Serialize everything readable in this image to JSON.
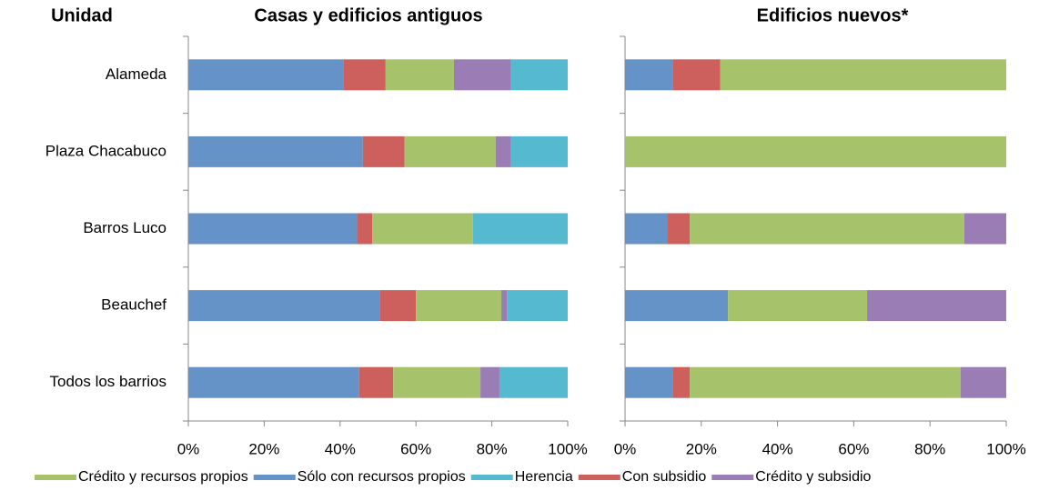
{
  "chart_data": [
    {
      "type": "bar",
      "orientation": "horizontal",
      "stacked": true,
      "y_axis_label": "Unidad",
      "title": "Casas y edificios antiguos",
      "categories": [
        "Alameda",
        "Plaza Chacabuco",
        "Barros Luco",
        "Beauchef",
        "Todos los barrios"
      ],
      "series": [
        {
          "name": "Sólo con recursos propios",
          "color": "#6593c8",
          "values": [
            41,
            46,
            44.5,
            50.5,
            45
          ]
        },
        {
          "name": "Con subsidio",
          "color": "#cd5f5c",
          "values": [
            11,
            11,
            4,
            9.5,
            9
          ]
        },
        {
          "name": "Crédito y recursos propios",
          "color": "#a6c26b",
          "values": [
            18,
            24,
            26.5,
            22.5,
            23
          ]
        },
        {
          "name": "Crédito y subsidio",
          "color": "#9a7db4",
          "values": [
            15,
            4,
            0,
            1.5,
            5
          ]
        },
        {
          "name": "Herencia",
          "color": "#55b9cf",
          "values": [
            15,
            15,
            25,
            16,
            18
          ]
        }
      ],
      "legend_order": [
        2,
        0,
        4,
        1,
        3
      ],
      "xlim": [
        0,
        100
      ],
      "xticks": [
        {
          "value": 0,
          "label": "0%"
        },
        {
          "value": 20,
          "label": "20%"
        },
        {
          "value": 40,
          "label": "40%"
        },
        {
          "value": 60,
          "label": "60%"
        },
        {
          "value": 80,
          "label": "80%"
        },
        {
          "value": 100,
          "label": "100%"
        }
      ]
    },
    {
      "type": "bar",
      "orientation": "horizontal",
      "stacked": true,
      "title": "Edificios nuevos*",
      "series": [
        {
          "values": [
            12.5,
            0,
            11,
            27,
            12.5
          ]
        },
        {
          "values": [
            12.5,
            0,
            6,
            0,
            4.5
          ]
        },
        {
          "values": [
            75,
            100,
            72,
            36.5,
            71
          ]
        },
        {
          "values": [
            0,
            0,
            11,
            36.5,
            12
          ]
        },
        {
          "values": [
            0,
            0,
            0,
            0,
            0
          ]
        }
      ],
      "xlim": [
        0,
        100
      ],
      "xticks": [
        {
          "value": 0,
          "label": "0%"
        },
        {
          "value": 20,
          "label": "20%"
        },
        {
          "value": 40,
          "label": "40%"
        },
        {
          "value": 60,
          "label": "60%"
        },
        {
          "value": 80,
          "label": "80%"
        },
        {
          "value": 100,
          "label": "100%"
        }
      ]
    }
  ]
}
